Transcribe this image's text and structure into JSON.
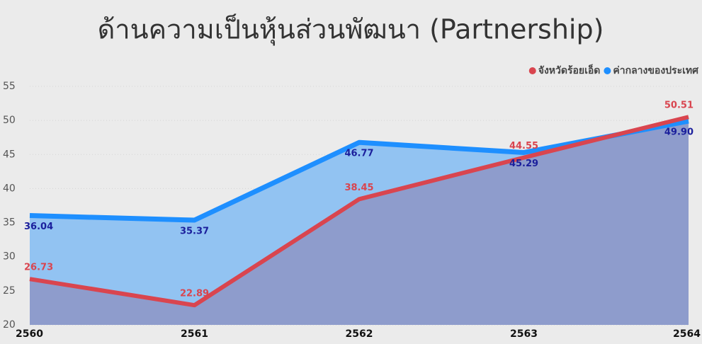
{
  "chart_data": {
    "type": "line",
    "title": "ด้านความเป็นหุ้นส่วนพัฒนา (Partnership)",
    "categories": [
      "2560",
      "2561",
      "2562",
      "2563",
      "2564"
    ],
    "series": [
      {
        "name": "จังหวัดร้อยเอ็ด",
        "color": "#d9454f",
        "area_color": "#8e9ccc",
        "values": [
          26.73,
          22.89,
          38.45,
          44.55,
          50.51
        ]
      },
      {
        "name": "ค่ากลางของประเทศ",
        "color": "#1e8fff",
        "area_color": "#92c3f2",
        "values": [
          36.04,
          35.37,
          46.77,
          45.29,
          49.9
        ],
        "value_labels": [
          "36.04",
          "35.37",
          "46.77",
          "45.29",
          "49.90"
        ]
      }
    ],
    "ylim": [
      20,
      55
    ],
    "yticks": [
      20,
      25,
      30,
      35,
      40,
      45,
      50,
      55
    ],
    "grid": true,
    "legend": "top-right"
  }
}
